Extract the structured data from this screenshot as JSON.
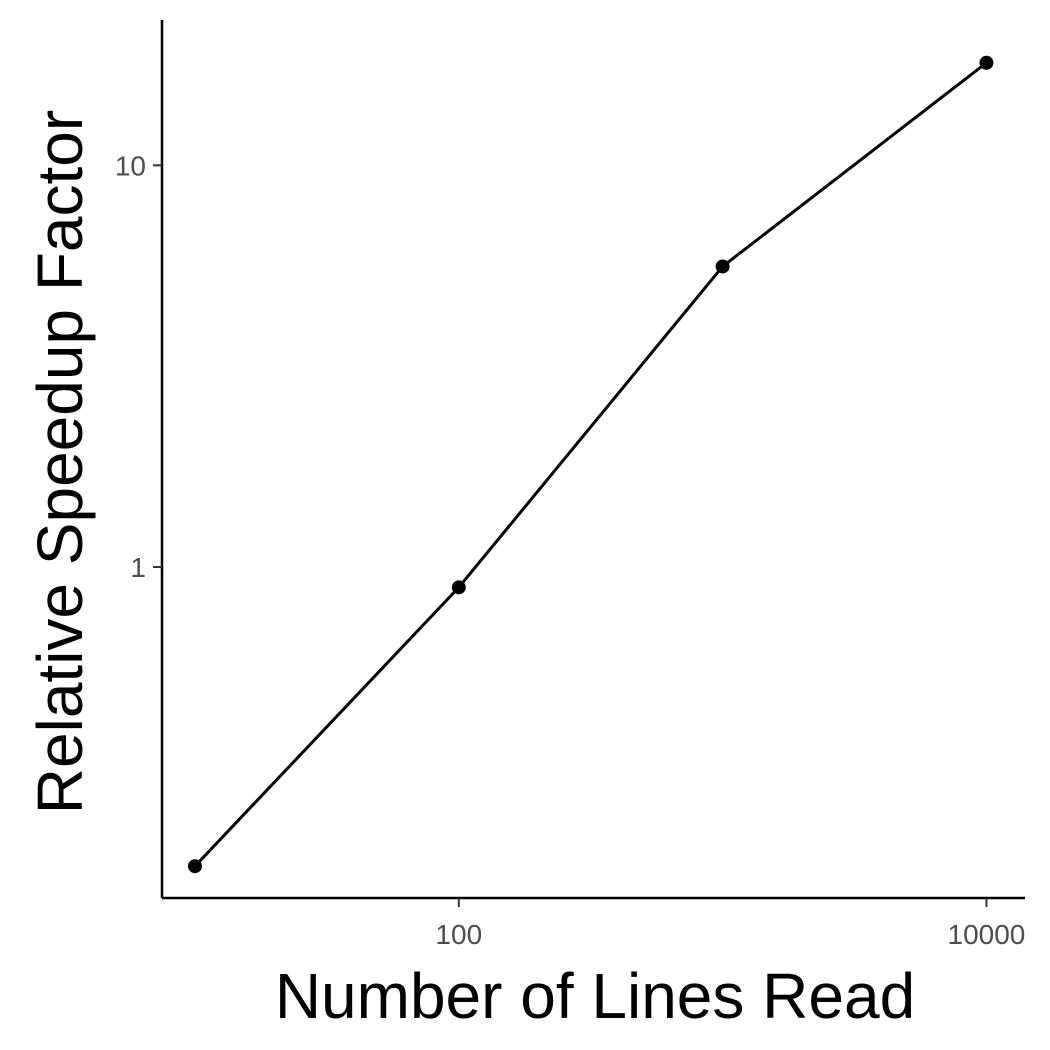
{
  "chart_data": {
    "type": "line",
    "title": "",
    "xlabel": "Number of Lines Read",
    "ylabel": "Relative Speedup Factor",
    "x_scale": "log10",
    "y_scale": "log10",
    "x": [
      10,
      100,
      1000,
      10000
    ],
    "series": [
      {
        "values": [
          0.18,
          0.89,
          5.6,
          18
        ]
      }
    ],
    "xticks": [
      {
        "value": 100,
        "label": "100"
      },
      {
        "value": 10000,
        "label": "10000"
      }
    ],
    "yticks": [
      {
        "value": 1,
        "label": "1"
      },
      {
        "value": 10,
        "label": "10"
      }
    ],
    "grid": false,
    "legend": "none",
    "colors": {
      "line": "#000000",
      "point": "#000000",
      "axis": "#000000",
      "tick_text": "#4d4d4d"
    }
  }
}
